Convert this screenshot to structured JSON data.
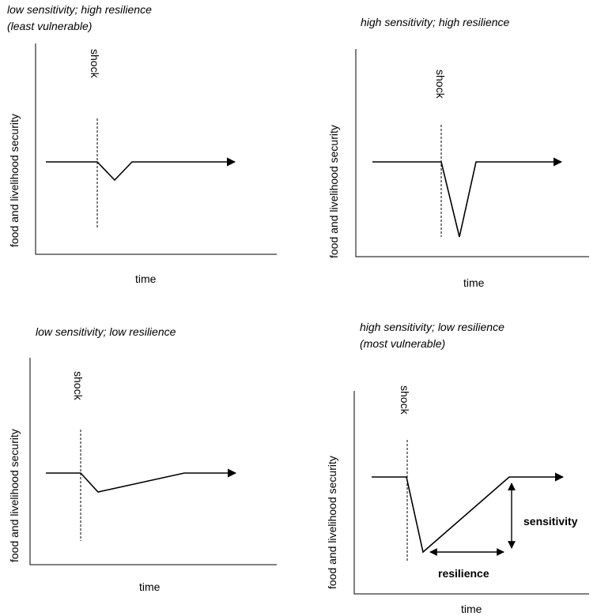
{
  "panels": [
    {
      "title_line1": "low sensitivity; high resilience",
      "title_line2": "(least vulnerable)",
      "xlabel": "time",
      "ylabel": "food and livelihood security",
      "shock_label": "shock"
    },
    {
      "title_line1": "high sensitivity; high resilience",
      "title_line2": "",
      "xlabel": "time",
      "ylabel": "food and livelihood security",
      "shock_label": "shock"
    },
    {
      "title_line1": "low sensitivity; low resilience",
      "title_line2": "",
      "xlabel": "time",
      "ylabel": "food and livelihood security",
      "shock_label": "shock"
    },
    {
      "title_line1": "high sensitivity; low resilience",
      "title_line2": "(most vulnerable)",
      "xlabel": "time",
      "ylabel": "food and livelihood security",
      "shock_label": "shock",
      "sensitivity_label": "sensitivity",
      "resilience_label": "resilience"
    }
  ]
}
